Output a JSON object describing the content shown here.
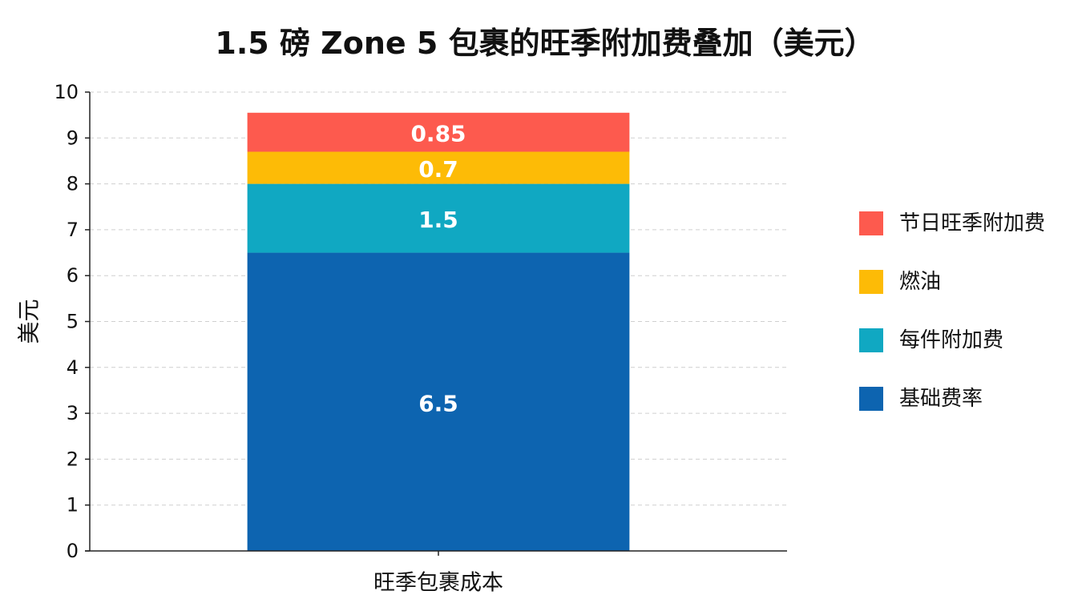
{
  "chart_data": {
    "type": "bar",
    "stacked": true,
    "title": "1.5 磅 Zone 5 包裹的旺季附加费叠加（美元）",
    "xlabel": "",
    "ylabel": "美元",
    "ylim": [
      0,
      10
    ],
    "yticks": [
      "0",
      "1",
      "2",
      "3",
      "4",
      "5",
      "6",
      "7",
      "8",
      "9",
      "10"
    ],
    "grid": true,
    "legend_position": "right",
    "categories": [
      "旺季包裹成本"
    ],
    "series": [
      {
        "name": "基础费率",
        "values": [
          6.5
        ],
        "label": "6.5",
        "color": "#0d64b0"
      },
      {
        "name": "每件附加费",
        "values": [
          1.5
        ],
        "label": "1.5",
        "color": "#10a8c2"
      },
      {
        "name": "燃油",
        "values": [
          0.7
        ],
        "label": "0.7",
        "color": "#fdbb06"
      },
      {
        "name": "节日旺季附加费",
        "values": [
          0.85
        ],
        "label": "0.85",
        "color": "#fd5a4e"
      }
    ],
    "legend_order": [
      3,
      2,
      1,
      0
    ]
  }
}
